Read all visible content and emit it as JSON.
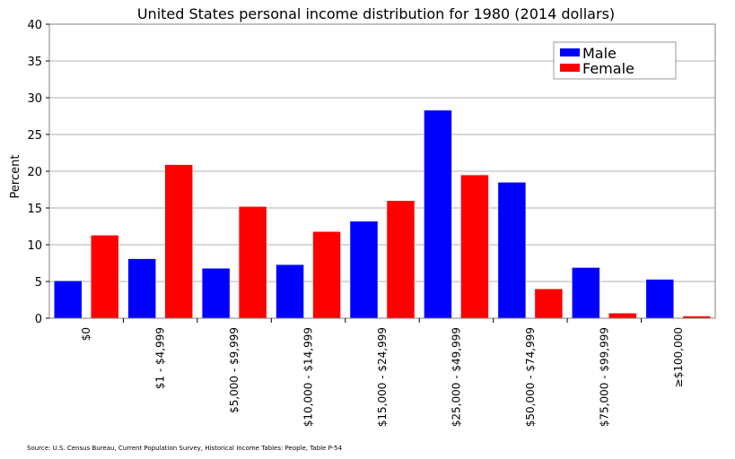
{
  "chart_data": {
    "type": "bar",
    "title": "United States personal income distribution for 1980 (2014 dollars)",
    "ylabel": "Percent",
    "xlabel": "",
    "ylim": [
      0,
      40
    ],
    "yticks": [
      0,
      5,
      10,
      15,
      20,
      25,
      30,
      35,
      40
    ],
    "grid": true,
    "legend_position": "top-right",
    "categories": [
      "$0",
      "$1 - $4,999",
      "$5,000 - $9,999",
      "$10,000 - $14,999",
      "$15,000 - $24,999",
      "$25,000 - $49,999",
      "$50,000 - $74,999",
      "$75,000 - $99,999",
      "≥$100,000"
    ],
    "series": [
      {
        "name": "Male",
        "color": "#0000ff",
        "values": [
          5.1,
          8.1,
          6.8,
          7.3,
          13.2,
          28.3,
          18.5,
          6.9,
          5.3
        ]
      },
      {
        "name": "Female",
        "color": "#ff0000",
        "values": [
          11.3,
          20.9,
          15.2,
          11.8,
          16.0,
          19.5,
          4.0,
          0.7,
          0.3
        ]
      }
    ]
  },
  "source": "Source: U.S. Census Bureau, Current Population Survey, Historical Income Tables: People, Table P-54"
}
